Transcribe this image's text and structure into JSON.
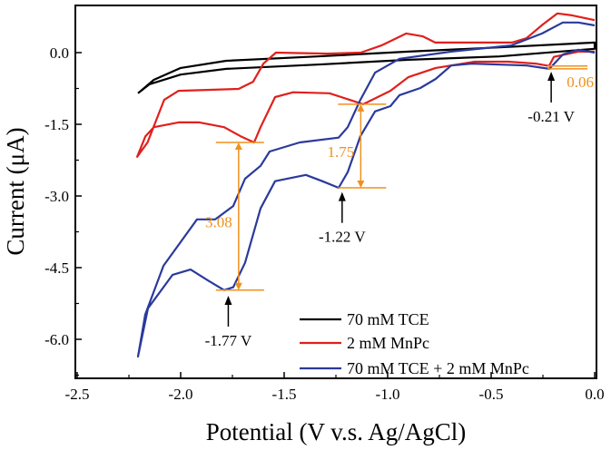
{
  "chart_data": {
    "type": "line",
    "title": "",
    "xlabel": "Potential (V v.s. Ag/AgCl)",
    "ylabel": "Current (μA)",
    "xlim": [
      -2.5,
      0.0
    ],
    "ylim": [
      -6.8,
      0.98
    ],
    "xticks": [
      "-2.5",
      "-2.0",
      "-1.5",
      "-1.0",
      "-0.5",
      "0.0"
    ],
    "xtick_values": [
      -2.5,
      -2.0,
      -1.5,
      -1.0,
      -0.5,
      0.0
    ],
    "yticks": [
      "0.0",
      "-1.5",
      "-3.0",
      "-4.5",
      "-6.0"
    ],
    "ytick_values": [
      0.0,
      -1.5,
      -3.0,
      -4.5,
      -6.0
    ],
    "grid": false,
    "legend_position": "bottom-right",
    "series": [
      {
        "name": "70 mM TCE",
        "color": "#000000",
        "points": [
          [
            -2.206,
            -0.85
          ],
          [
            -2.13,
            -0.57
          ],
          [
            -2.0,
            -0.32
          ],
          [
            -1.78,
            -0.17
          ],
          [
            -1.34,
            -0.08
          ],
          [
            -0.9,
            0.02
          ],
          [
            -0.46,
            0.11
          ],
          [
            0.0,
            0.21
          ],
          [
            0.0,
            0.08
          ],
          [
            -0.46,
            -0.08
          ],
          [
            -0.9,
            -0.15
          ],
          [
            -1.34,
            -0.25
          ],
          [
            -1.78,
            -0.34
          ],
          [
            -2.0,
            -0.46
          ],
          [
            -2.15,
            -0.66
          ],
          [
            -2.206,
            -0.85
          ]
        ]
      },
      {
        "name": "2 mM MnPc",
        "color": "#e0201c",
        "points": [
          [
            0.0,
            0.02
          ],
          [
            -0.079,
            0.02
          ],
          [
            -0.197,
            -0.09
          ],
          [
            -0.22,
            -0.28
          ],
          [
            -0.285,
            -0.23
          ],
          [
            -0.417,
            -0.19
          ],
          [
            -0.579,
            -0.19
          ],
          [
            -0.768,
            -0.32
          ],
          [
            -0.899,
            -0.51
          ],
          [
            -0.987,
            -0.8
          ],
          [
            -1.118,
            -1.08
          ],
          [
            -1.281,
            -0.85
          ],
          [
            -1.456,
            -0.83
          ],
          [
            -1.544,
            -0.93
          ],
          [
            -1.614,
            -1.56
          ],
          [
            -1.645,
            -1.88
          ],
          [
            -1.71,
            -1.75
          ],
          [
            -1.79,
            -1.56
          ],
          [
            -1.91,
            -1.46
          ],
          [
            -2.01,
            -1.46
          ],
          [
            -2.13,
            -1.56
          ],
          [
            -2.17,
            -1.75
          ],
          [
            -2.21,
            -2.18
          ],
          [
            -2.16,
            -1.88
          ],
          [
            -2.08,
            -0.99
          ],
          [
            -2.01,
            -0.8
          ],
          [
            -1.72,
            -0.76
          ],
          [
            -1.65,
            -0.61
          ],
          [
            -1.6,
            -0.23
          ],
          [
            -1.54,
            0.0
          ],
          [
            -1.29,
            -0.02
          ],
          [
            -1.13,
            0.0
          ],
          [
            -1.03,
            0.15
          ],
          [
            -0.91,
            0.4
          ],
          [
            -0.83,
            0.34
          ],
          [
            -0.77,
            0.21
          ],
          [
            -0.4,
            0.21
          ],
          [
            -0.33,
            0.3
          ],
          [
            -0.25,
            0.59
          ],
          [
            -0.18,
            0.82
          ],
          [
            -0.11,
            0.78
          ],
          [
            0.0,
            0.68
          ]
        ]
      },
      {
        "name": "70 mM TCE + 2 mM MnPc",
        "color": "#2a3a9c",
        "points": [
          [
            0.0,
            0.0
          ],
          [
            -0.079,
            0.06
          ],
          [
            -0.154,
            -0.04
          ],
          [
            -0.219,
            -0.34
          ],
          [
            -0.329,
            -0.27
          ],
          [
            -0.592,
            -0.23
          ],
          [
            -0.693,
            -0.27
          ],
          [
            -0.768,
            -0.55
          ],
          [
            -0.842,
            -0.74
          ],
          [
            -0.943,
            -0.89
          ],
          [
            -0.987,
            -1.12
          ],
          [
            -1.061,
            -1.23
          ],
          [
            -1.132,
            -1.75
          ],
          [
            -1.193,
            -2.5
          ],
          [
            -1.237,
            -2.83
          ],
          [
            -1.316,
            -2.69
          ],
          [
            -1.395,
            -2.56
          ],
          [
            -1.544,
            -2.69
          ],
          [
            -1.614,
            -3.26
          ],
          [
            -1.689,
            -4.4
          ],
          [
            -1.746,
            -4.91
          ],
          [
            -1.79,
            -4.97
          ],
          [
            -1.864,
            -4.78
          ],
          [
            -1.952,
            -4.54
          ],
          [
            -2.039,
            -4.65
          ],
          [
            -2.158,
            -5.35
          ],
          [
            -2.206,
            -6.36
          ],
          [
            -2.171,
            -5.48
          ],
          [
            -2.083,
            -4.46
          ],
          [
            -1.921,
            -3.49
          ],
          [
            -1.833,
            -3.49
          ],
          [
            -1.746,
            -3.21
          ],
          [
            -1.689,
            -2.64
          ],
          [
            -1.614,
            -2.37
          ],
          [
            -1.57,
            -2.07
          ],
          [
            -1.425,
            -1.88
          ],
          [
            -1.237,
            -1.78
          ],
          [
            -1.193,
            -1.56
          ],
          [
            -1.132,
            -0.99
          ],
          [
            -1.061,
            -0.42
          ],
          [
            -0.943,
            -0.13
          ],
          [
            -0.693,
            0.02
          ],
          [
            -0.404,
            0.15
          ],
          [
            -0.254,
            0.4
          ],
          [
            -0.154,
            0.63
          ],
          [
            -0.079,
            0.63
          ],
          [
            0.0,
            0.57
          ]
        ]
      }
    ],
    "annotations": {
      "peaks": [
        {
          "label": "-0.21 V",
          "x": -0.21,
          "y": -0.36
        },
        {
          "label": "-1.22 V",
          "x": -1.22,
          "y": -2.88
        },
        {
          "label": "-1.77 V",
          "x": -1.77,
          "y": -5.05
        }
      ],
      "differences": [
        {
          "label": "0.06",
          "x": -0.21,
          "from": -0.28,
          "to": -0.34
        },
        {
          "label": "1.75",
          "x": -1.13,
          "from": -1.08,
          "to": -2.83
        },
        {
          "label": "3.08",
          "x": -1.72,
          "from": -1.88,
          "to": -4.97
        }
      ],
      "diff_color": "#f0901c"
    }
  }
}
